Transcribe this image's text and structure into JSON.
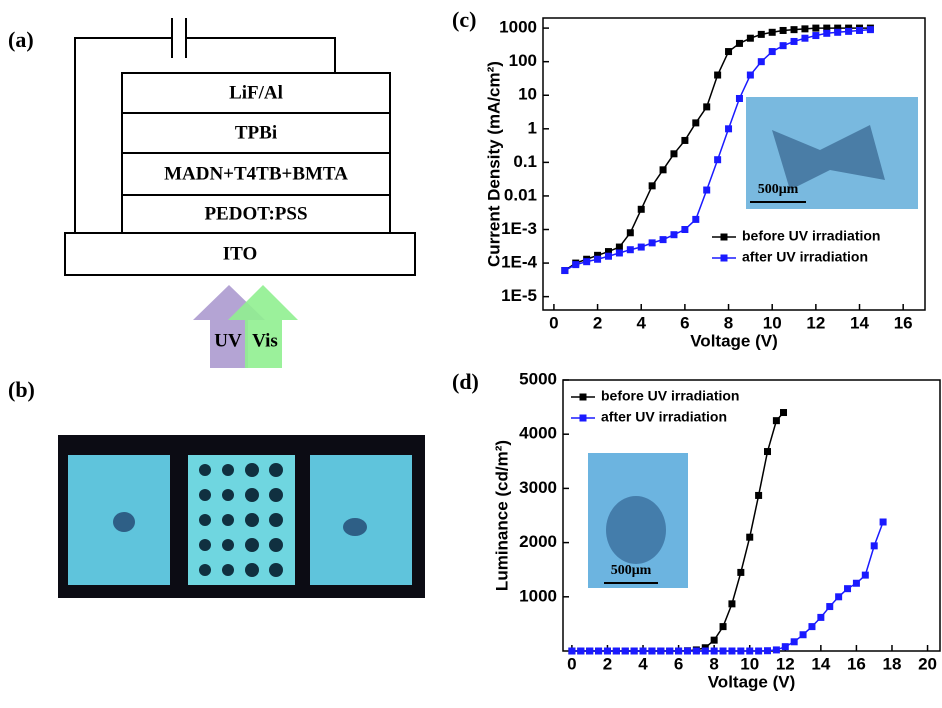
{
  "panels": [
    "(a)",
    "(b)",
    "(c)",
    "(d)"
  ],
  "device": {
    "layers": [
      "LiF/Al",
      "TPBi",
      "MADN+T4TB+BMTA",
      "PEDOT:PSS",
      "ITO"
    ],
    "arrows": [
      "UV",
      "Vis"
    ]
  },
  "chart_data": [
    {
      "type": "line",
      "x_label": "Voltage (V)",
      "y_label": "Current Density (mA/cm²)",
      "log_y": true,
      "legend": "lower right",
      "inset_label": "500μm",
      "xlim": [
        -0.5,
        17
      ],
      "xticks": [
        0,
        2,
        4,
        6,
        8,
        10,
        12,
        14,
        16
      ],
      "ylim": [
        4e-06,
        2000
      ],
      "yticks": [
        {
          "value": 1e-05,
          "label": "1E-5"
        },
        {
          "value": 0.0001,
          "label": "1E-4"
        },
        {
          "value": 0.001,
          "label": "1E-3"
        },
        0.01,
        0.1,
        1,
        10,
        100,
        1000
      ],
      "x": [
        0.5,
        1,
        1.5,
        2,
        2.5,
        3,
        3.5,
        4,
        4.5,
        5,
        5.5,
        6,
        6.5,
        7,
        7.5,
        8,
        8.5,
        9,
        9.5,
        10,
        10.5,
        11,
        11.5,
        12,
        12.5,
        13,
        13.5,
        14,
        14.5
      ],
      "series": [
        {
          "name": "before UV irradiation",
          "color": "#000000",
          "values": [
            6e-05,
            0.0001,
            0.00013,
            0.00017,
            0.00022,
            0.0003,
            0.0008,
            0.004,
            0.02,
            0.06,
            0.18,
            0.45,
            1.5,
            4.5,
            40,
            200,
            350,
            500,
            650,
            750,
            850,
            900,
            950,
            1000,
            1000,
            1000,
            1000,
            1000,
            1000
          ]
        },
        {
          "name": "after UV irradiation",
          "color": "#1a1aff",
          "values": [
            6e-05,
            9e-05,
            0.00011,
            0.00013,
            0.00016,
            0.0002,
            0.00025,
            0.0003,
            0.0004,
            0.0005,
            0.0007,
            0.001,
            0.002,
            0.015,
            0.12,
            1,
            8,
            40,
            100,
            200,
            300,
            400,
            500,
            600,
            700,
            750,
            800,
            850,
            900
          ]
        }
      ]
    },
    {
      "type": "line",
      "x_label": "Voltage (V)",
      "y_label": "Luminance (cd/m²)",
      "log_y": false,
      "legend": "upper left",
      "inset_label": "500μm",
      "xlim": [
        -0.5,
        20.7
      ],
      "xticks": [
        0,
        2,
        4,
        6,
        8,
        10,
        12,
        14,
        16,
        18,
        20
      ],
      "ylim": [
        0,
        5000
      ],
      "yticks": [
        1000,
        2000,
        3000,
        4000,
        5000
      ],
      "series": [
        {
          "name": "before UV irradiation",
          "color": "#000000",
          "x": [
            0,
            0.5,
            1,
            1.5,
            2,
            2.5,
            3,
            3.5,
            4,
            4.5,
            5,
            5.5,
            6,
            6.5,
            7,
            7.5,
            8,
            8.5,
            9,
            9.5,
            10,
            10.5,
            11,
            11.5,
            11.9
          ],
          "values": [
            0,
            0,
            0,
            0,
            0,
            0,
            0,
            0,
            0,
            0,
            0,
            0,
            0,
            5,
            20,
            60,
            200,
            450,
            870,
            1450,
            2100,
            2870,
            3680,
            4250,
            4400
          ]
        },
        {
          "name": "after UV irradiation",
          "color": "#1a1aff",
          "x": [
            0,
            0.5,
            1,
            1.5,
            2,
            2.5,
            3,
            3.5,
            4,
            4.5,
            5,
            5.5,
            6,
            6.5,
            7,
            7.5,
            8,
            8.5,
            9,
            9.5,
            10,
            10.5,
            11,
            11.5,
            12,
            12.5,
            13,
            13.5,
            14,
            14.5,
            15,
            15.5,
            16,
            16.5,
            17,
            17.5
          ],
          "values": [
            0,
            0,
            0,
            0,
            0,
            0,
            0,
            0,
            0,
            0,
            0,
            0,
            0,
            0,
            0,
            0,
            0,
            0,
            0,
            0,
            0,
            0,
            5,
            20,
            80,
            170,
            300,
            450,
            620,
            820,
            1000,
            1150,
            1250,
            1400,
            1940,
            2380
          ]
        }
      ]
    }
  ]
}
